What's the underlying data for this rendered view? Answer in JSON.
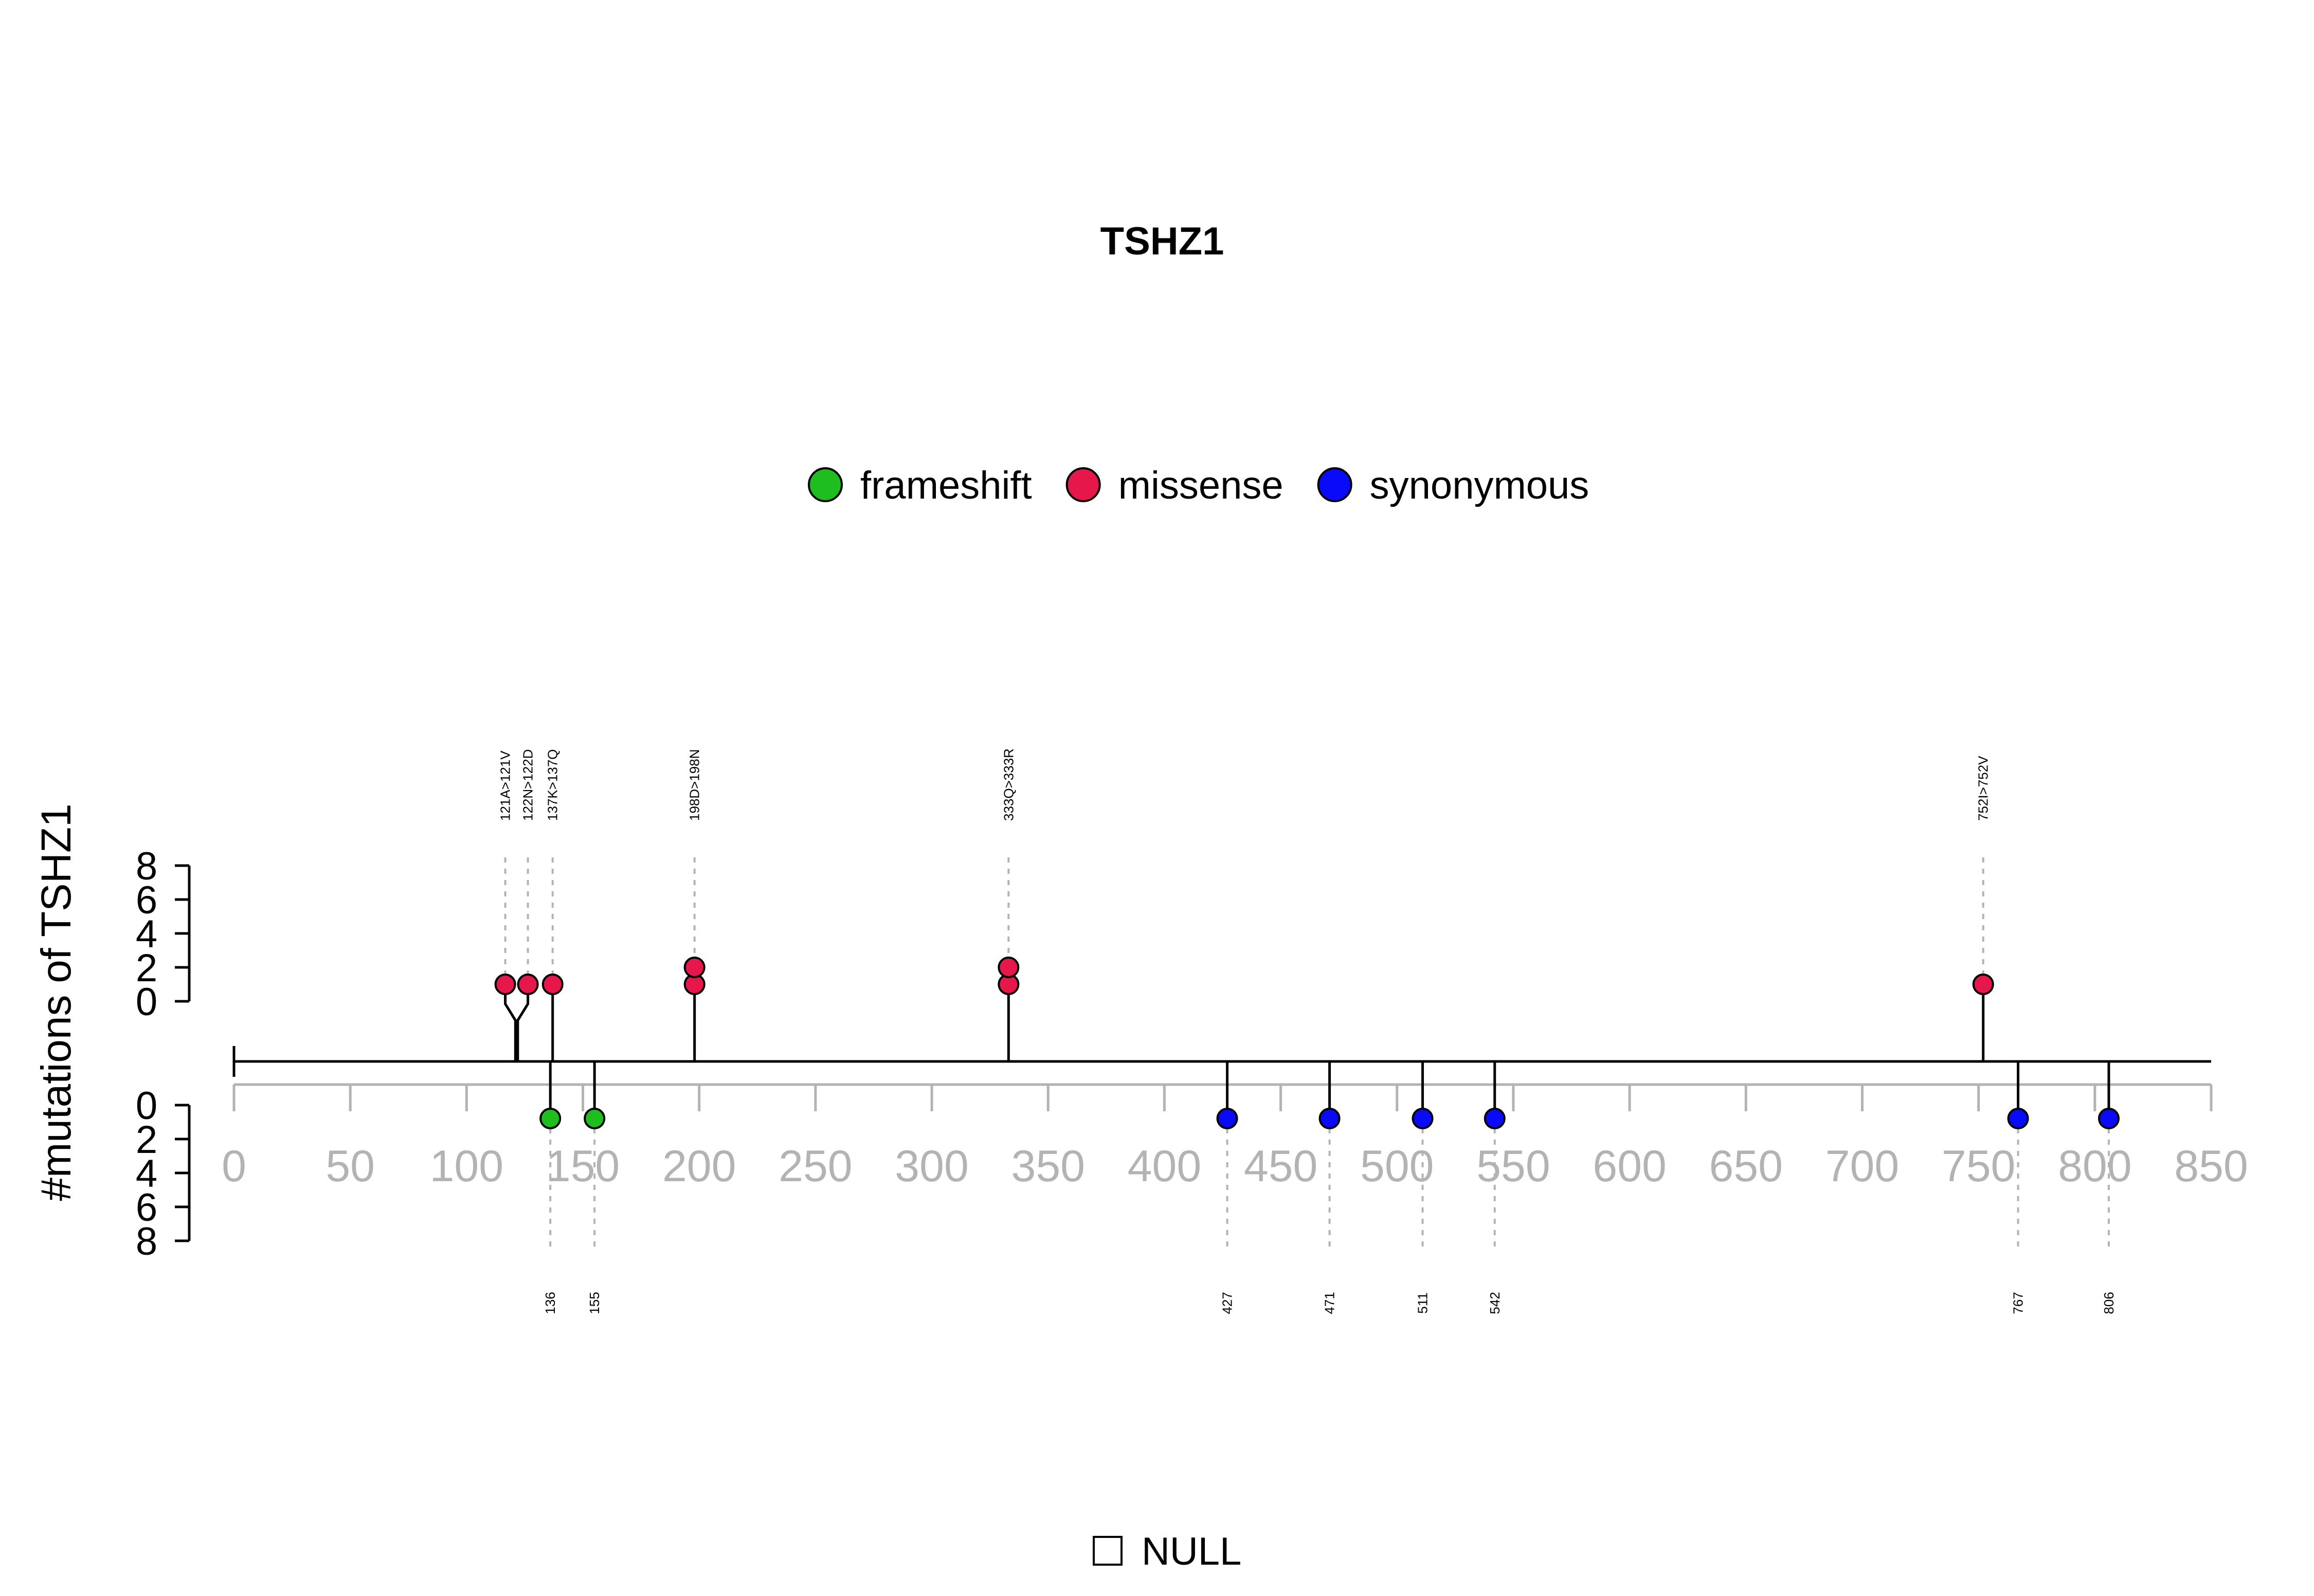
{
  "chart_data": {
    "type": "lollipop",
    "title": "TSHZ1",
    "ylabel": "#mutations of TSHZ1",
    "xlim": [
      0,
      850
    ],
    "x_ticks": [
      "0",
      "50",
      "100",
      "150",
      "200",
      "250",
      "300",
      "350",
      "400",
      "450",
      "500",
      "550",
      "600",
      "650",
      "700",
      "750",
      "800",
      "850"
    ],
    "y_ticks_top": [
      "0",
      "2",
      "4",
      "6",
      "8"
    ],
    "y_ticks_bottom": [
      "0",
      "2",
      "4",
      "6",
      "8"
    ],
    "legend": [
      {
        "label": "frameshift",
        "color": "#1EBE1E"
      },
      {
        "label": "missense",
        "color": "#E6174A"
      },
      {
        "label": "synonymous",
        "color": "#0A0AFA"
      }
    ],
    "bottom_legend": {
      "label": "NULL"
    },
    "top_mutations": [
      {
        "label": "121A>121V",
        "position": 121,
        "type": "missense",
        "count": 1
      },
      {
        "label": "122N>122D",
        "position": 122,
        "type": "missense",
        "count": 1
      },
      {
        "label": "137K>137Q",
        "position": 137,
        "type": "missense",
        "count": 1
      },
      {
        "label": "198D>198N",
        "position": 198,
        "type": "missense",
        "count": 2
      },
      {
        "label": "333Q>333R",
        "position": 333,
        "type": "missense",
        "count": 2
      },
      {
        "label": "752I>752V",
        "position": 752,
        "type": "missense",
        "count": 1
      }
    ],
    "bottom_mutations": [
      {
        "label": "136",
        "position": 136,
        "type": "frameshift",
        "count": 1
      },
      {
        "label": "155",
        "position": 155,
        "type": "frameshift",
        "count": 1
      },
      {
        "label": "427",
        "position": 427,
        "type": "synonymous",
        "count": 1
      },
      {
        "label": "471",
        "position": 471,
        "type": "synonymous",
        "count": 1
      },
      {
        "label": "511",
        "position": 511,
        "type": "synonymous",
        "count": 1
      },
      {
        "label": "542",
        "position": 542,
        "type": "synonymous",
        "count": 1
      },
      {
        "label": "767",
        "position": 767,
        "type": "synonymous",
        "count": 1
      },
      {
        "label": "806",
        "position": 806,
        "type": "synonymous",
        "count": 1
      }
    ]
  }
}
